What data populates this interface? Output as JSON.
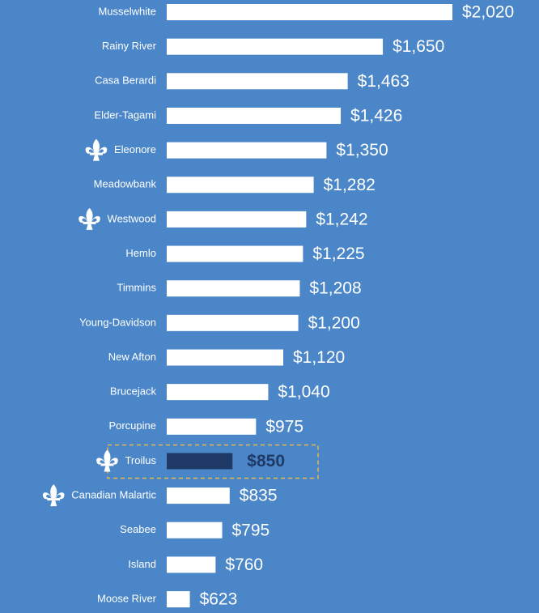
{
  "chart_data": {
    "type": "barh",
    "categories": [
      "Musselwhite",
      "Rainy River",
      "Casa Berardi",
      "Elder-Tagami",
      "Eleonore",
      "Meadowbank",
      "Westwood",
      "Hemlo",
      "Timmins",
      "Young-Davidson",
      "New Afton",
      "Brucejack",
      "Porcupine",
      "Troilus",
      "Canadian Malartic",
      "Seabee",
      "Island",
      "Moose River"
    ],
    "values": [
      2020,
      1650,
      1463,
      1426,
      1350,
      1282,
      1242,
      1225,
      1208,
      1200,
      1120,
      1040,
      975,
      850,
      835,
      795,
      760,
      623
    ],
    "value_labels": [
      "$2,020",
      "$1,650",
      "$1,463",
      "$1,426",
      "$1,350",
      "$1,282",
      "$1,242",
      "$1,225",
      "$1,208",
      "$1,200",
      "$1,120",
      "$1,040",
      "$975",
      "$850",
      "$835",
      "$795",
      "$760",
      "$623"
    ],
    "color": "#ffffff",
    "highlight_index": 13,
    "highlight_color": "#1f3a66",
    "icon_rows": [
      4,
      6,
      13,
      14
    ],
    "xlim": [
      500,
      2020
    ]
  }
}
